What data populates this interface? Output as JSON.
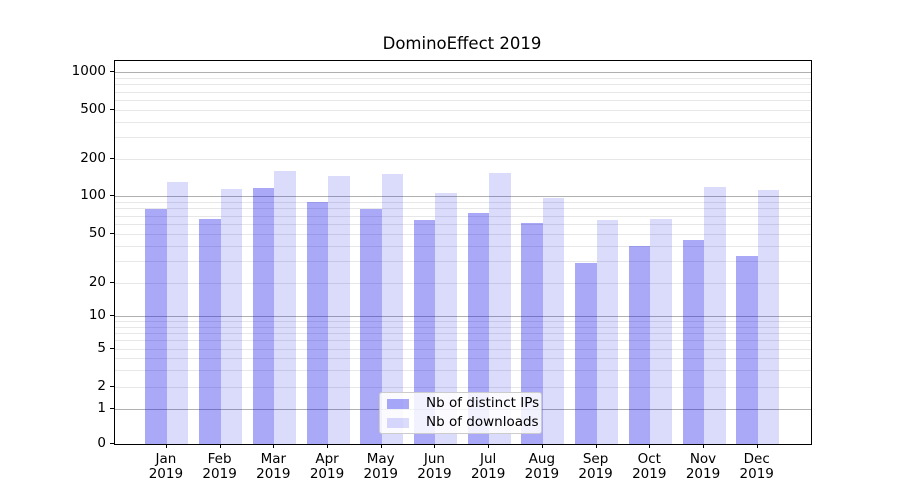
{
  "chart_data": {
    "type": "bar",
    "title": "DominoEffect 2019",
    "categories": [
      "Jan",
      "Feb",
      "Mar",
      "Apr",
      "May",
      "Jun",
      "Jul",
      "Aug",
      "Sep",
      "Oct",
      "Nov",
      "Dec"
    ],
    "x_year_label": "2019",
    "series": [
      {
        "name": "Nb of distinct IPs",
        "color": "rgba(10,10,235,0.35)",
        "values": [
          79,
          66,
          117,
          89,
          79,
          64,
          73,
          61,
          29,
          40,
          45,
          33
        ]
      },
      {
        "name": "Nb of downloads",
        "color": "rgba(10,10,235,0.145)",
        "values": [
          130,
          114,
          160,
          146,
          152,
          105,
          154,
          97,
          65,
          66,
          119,
          112
        ]
      }
    ],
    "yscale": "symlog (linear 0-1, logarithmic above 1)",
    "ylim": [
      0,
      1250
    ],
    "ytick_values": [
      0,
      1,
      2,
      5,
      10,
      20,
      50,
      100,
      200,
      500,
      1000
    ],
    "grid": {
      "major_values": [
        1,
        10,
        100,
        1000
      ],
      "minor_values": [
        2,
        3,
        4,
        5,
        6,
        7,
        8,
        9,
        20,
        30,
        40,
        50,
        60,
        70,
        80,
        90,
        200,
        300,
        400,
        500,
        600,
        700,
        800,
        900
      ],
      "major_color": "#b0b0b0",
      "minor_color": "#e7e7e7"
    },
    "legend_position": "lower center"
  }
}
